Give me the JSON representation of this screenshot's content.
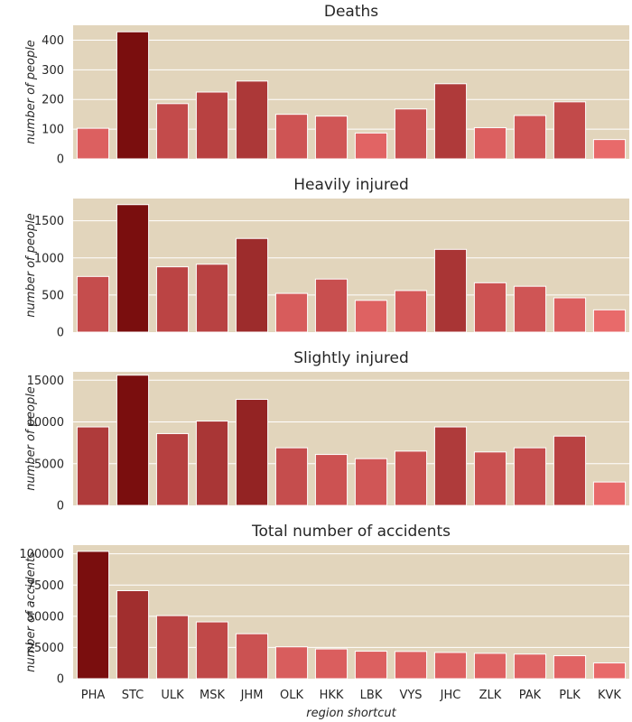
{
  "chart_data": [
    {
      "type": "bar",
      "title": "Deaths",
      "ylabel": "number of people",
      "xlabel": "",
      "categories": [
        "PHA",
        "STC",
        "ULK",
        "MSK",
        "JHM",
        "OLK",
        "HKK",
        "LBK",
        "VYS",
        "JHC",
        "ZLK",
        "PAK",
        "PLK",
        "KVK"
      ],
      "values": [
        103,
        428,
        186,
        225,
        262,
        150,
        144,
        87,
        168,
        253,
        105,
        146,
        192,
        65
      ],
      "ylim": [
        0,
        450
      ],
      "yticks": [
        "0",
        "100",
        "200",
        "300",
        "400"
      ],
      "grid": true
    },
    {
      "type": "bar",
      "title": "Heavily injured",
      "ylabel": "number of people",
      "xlabel": "",
      "categories": [
        "PHA",
        "STC",
        "ULK",
        "MSK",
        "JHM",
        "OLK",
        "HKK",
        "LBK",
        "VYS",
        "JHC",
        "ZLK",
        "PAK",
        "PLK",
        "KVK"
      ],
      "values": [
        750,
        1718,
        880,
        915,
        1262,
        522,
        715,
        428,
        560,
        1115,
        665,
        618,
        462,
        300
      ],
      "ylim": [
        0,
        1800
      ],
      "yticks": [
        "0",
        "500",
        "1000",
        "1500"
      ],
      "grid": true
    },
    {
      "type": "bar",
      "title": "Slightly injured",
      "ylabel": "number of people",
      "xlabel": "",
      "categories": [
        "PHA",
        "STC",
        "ULK",
        "MSK",
        "JHM",
        "OLK",
        "HKK",
        "LBK",
        "VYS",
        "JHC",
        "ZLK",
        "PAK",
        "PLK",
        "KVK"
      ],
      "values": [
        9400,
        15600,
        8600,
        10100,
        12700,
        6900,
        6100,
        5600,
        6500,
        9400,
        6400,
        6900,
        8300,
        2800
      ],
      "ylim": [
        0,
        16000
      ],
      "yticks": [
        "0",
        "5000",
        "10000",
        "15000"
      ],
      "grid": true
    },
    {
      "type": "bar",
      "title": "Total number of accidents",
      "ylabel": "number of accidents",
      "xlabel": "region shortcut",
      "categories": [
        "PHA",
        "STC",
        "ULK",
        "MSK",
        "JHM",
        "OLK",
        "HKK",
        "LBK",
        "VYS",
        "JHC",
        "ZLK",
        "PAK",
        "PLK",
        "KVK"
      ],
      "values": [
        102000,
        70500,
        50500,
        45500,
        36000,
        25500,
        23800,
        22000,
        21800,
        21000,
        20300,
        19700,
        18400,
        12600
      ],
      "ylim": [
        0,
        107000
      ],
      "yticks": [
        "0",
        "25000",
        "50000",
        "75000",
        "100000"
      ],
      "grid": true
    }
  ],
  "colors": {
    "plot_background": "#e2d5bc",
    "grid": "#ffffff",
    "bar_low": "#e86a6a",
    "bar_high": "#7a0e0e",
    "text": "#262626"
  }
}
